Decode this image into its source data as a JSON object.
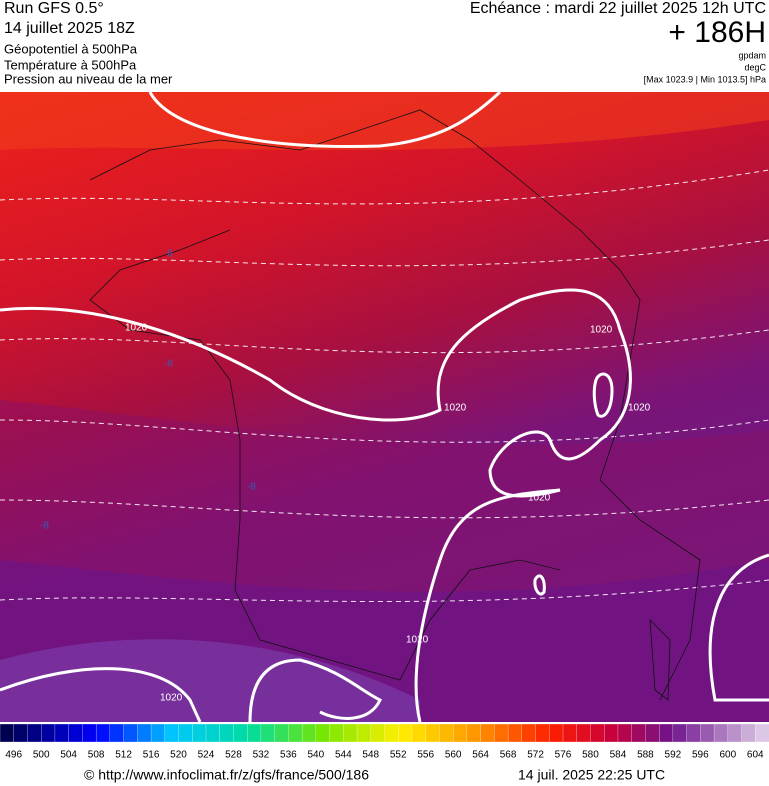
{
  "header": {
    "run": "Run GFS 0.5°",
    "run_date": "14 juillet 2025 18Z",
    "fields": [
      "Géopotentiel à 500hPa",
      "Température à 500hPa",
      "Pression au niveau de la mer"
    ],
    "valid": "Echéance : mardi 22 juillet 2025 12h UTC",
    "lead": "+ 186H",
    "units": [
      "gpdam",
      "degC",
      "[Max 1023.9 | Min 1013.5] hPa"
    ]
  },
  "map": {
    "contour_labels": [
      "1020",
      "1020",
      "1020",
      "1020",
      "1020",
      "1020",
      "1020"
    ],
    "temperature_labels": [
      "-8",
      "-8",
      "-8",
      "-8"
    ]
  },
  "legend": {
    "labels": [
      496,
      500,
      504,
      508,
      512,
      516,
      520,
      524,
      528,
      532,
      536,
      540,
      544,
      548,
      552,
      556,
      560,
      564,
      568,
      572,
      576,
      580,
      584,
      588,
      592,
      596,
      600,
      604
    ]
  },
  "footer": {
    "source": "© http://www.infoclimat.fr/z/gfs/france/500/186",
    "generated": "14 juil. 2025 22:25 UTC"
  }
}
